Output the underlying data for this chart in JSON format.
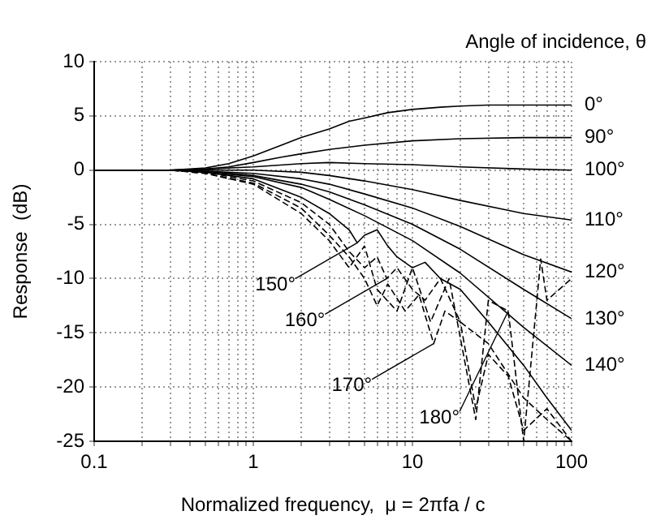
{
  "chart_data": {
    "type": "line",
    "xlabel": "Normalized frequency,  μ = 2πfa / c",
    "ylabel": "Response  (dB)",
    "legend_title": "Angle of incidence, θ",
    "log": "x",
    "grid": true,
    "marker": "none",
    "xlim": [
      0.1,
      100
    ],
    "ylim": [
      -25,
      10
    ],
    "xticks": [
      0.1,
      {
        "value": 0.2,
        "label": null
      },
      {
        "value": 0.3,
        "label": null
      },
      {
        "value": 0.4,
        "label": null
      },
      {
        "value": 0.5,
        "label": null
      },
      {
        "value": 0.6,
        "label": null
      },
      {
        "value": 0.7,
        "label": null
      },
      {
        "value": 0.8,
        "label": null
      },
      {
        "value": 0.9,
        "label": null
      },
      1,
      {
        "value": 2,
        "label": null
      },
      {
        "value": 3,
        "label": null
      },
      {
        "value": 4,
        "label": null
      },
      {
        "value": 5,
        "label": null
      },
      {
        "value": 6,
        "label": null
      },
      {
        "value": 7,
        "label": null
      },
      {
        "value": 8,
        "label": null
      },
      {
        "value": 9,
        "label": null
      },
      10,
      {
        "value": 20,
        "label": null
      },
      {
        "value": 30,
        "label": null
      },
      {
        "value": 40,
        "label": null
      },
      {
        "value": 50,
        "label": null
      },
      {
        "value": 60,
        "label": null
      },
      {
        "value": 70,
        "label": null
      },
      {
        "value": 80,
        "label": null
      },
      {
        "value": 90,
        "label": null
      },
      100
    ],
    "yticks": [
      10,
      5,
      0,
      -5,
      -10,
      -15,
      -20,
      -25
    ],
    "series": [
      {
        "name": "0°",
        "color": "#000000",
        "line_style": "solid",
        "x": [
          0.1,
          0.3,
          0.5,
          0.7,
          1,
          1.5,
          2,
          3,
          4,
          5,
          7,
          10,
          15,
          20,
          30,
          50,
          70,
          100
        ],
        "values": [
          0,
          0,
          0.2,
          0.6,
          1.3,
          2.3,
          3,
          3.8,
          4.5,
          4.8,
          5.3,
          5.6,
          5.8,
          5.9,
          6,
          6,
          6,
          6
        ]
      },
      {
        "name": "90°",
        "color": "#000000",
        "line_style": "solid",
        "x": [
          0.1,
          0.3,
          0.5,
          0.7,
          1,
          1.5,
          2,
          3,
          5,
          10,
          20,
          50,
          100
        ],
        "values": [
          0,
          0,
          0.1,
          0.3,
          0.7,
          1.2,
          1.5,
          1.9,
          2.3,
          2.7,
          2.9,
          3,
          3
        ]
      },
      {
        "name": "100°",
        "color": "#000000",
        "line_style": "solid",
        "x": [
          0.1,
          0.3,
          0.5,
          1,
          2,
          3,
          5,
          10,
          20,
          50,
          100
        ],
        "values": [
          0,
          0,
          0.1,
          0.3,
          0.6,
          0.7,
          0.6,
          0.5,
          0.3,
          0.1,
          0
        ]
      },
      {
        "name": "110°",
        "color": "#000000",
        "line_style": "solid",
        "x": [
          0.1,
          0.3,
          0.5,
          1,
          2,
          3,
          5,
          10,
          20,
          50,
          100
        ],
        "values": [
          0,
          0,
          0,
          0,
          -0.2,
          -0.5,
          -1,
          -1.8,
          -2.8,
          -4,
          -4.6
        ]
      },
      {
        "name": "120°",
        "color": "#000000",
        "line_style": "solid",
        "x": [
          0.1,
          0.3,
          0.5,
          1,
          2,
          3,
          5,
          10,
          20,
          50,
          100
        ],
        "values": [
          0,
          0,
          -0.1,
          -0.3,
          -0.8,
          -1.3,
          -2.2,
          -3.5,
          -5.2,
          -7.8,
          -9.4
        ]
      },
      {
        "name": "130°",
        "color": "#000000",
        "line_style": "solid",
        "x": [
          0.1,
          0.3,
          0.5,
          1,
          2,
          3,
          5,
          10,
          20,
          50,
          100
        ],
        "values": [
          0,
          0,
          -0.1,
          -0.5,
          -1.3,
          -2,
          -3.2,
          -5,
          -7.3,
          -11,
          -13.7
        ]
      },
      {
        "name": "140°",
        "color": "#000000",
        "line_style": "solid",
        "x": [
          0.1,
          0.3,
          0.5,
          1,
          2,
          3,
          5,
          10,
          20,
          50,
          100
        ],
        "values": [
          0,
          0,
          -0.2,
          -0.6,
          -1.6,
          -2.7,
          -4.2,
          -6.5,
          -9.5,
          -14.5,
          -18
        ]
      },
      {
        "color": "#000000",
        "line_style": "solid",
        "x": [
          0.1,
          0.3,
          0.5,
          1,
          2,
          3,
          4,
          4.5,
          5,
          6,
          7,
          8,
          10,
          12,
          15,
          20,
          30,
          50,
          70,
          100
        ],
        "values": [
          0,
          0,
          -0.2,
          -0.8,
          -2.5,
          -4,
          -5.5,
          -6.7,
          -6,
          -5.5,
          -7,
          -8,
          -9,
          -8.5,
          -10,
          -11,
          -14,
          -18,
          -21,
          -24
        ]
      },
      {
        "color": "#000000",
        "line_style": "dashed",
        "x": [
          0.1,
          0.3,
          0.5,
          1,
          2,
          3,
          4,
          5,
          6,
          6.9,
          8,
          10,
          12,
          15,
          20,
          30,
          50,
          70,
          100
        ],
        "values": [
          0,
          0,
          -0.2,
          -1,
          -3,
          -5,
          -7.5,
          -9,
          -8,
          -10,
          -9,
          -11,
          -12,
          -10,
          -14,
          -16,
          -21,
          -23,
          -25
        ]
      },
      {
        "color": "#000000",
        "line_style": "dashed",
        "x": [
          0.1,
          0.3,
          0.5,
          1,
          2,
          3,
          4,
          5,
          6,
          7,
          9,
          11,
          13.6,
          16,
          20,
          25,
          30,
          40,
          50,
          70,
          100
        ],
        "values": [
          0,
          0,
          -0.3,
          -1.2,
          -3.5,
          -6,
          -8,
          -10,
          -12.5,
          -10.5,
          -13,
          -11.5,
          -16,
          -13,
          -14,
          -22,
          -17,
          -19,
          -24,
          -22,
          -25
        ]
      },
      {
        "color": "#000000",
        "line_style": "dashed",
        "x": [
          0.1,
          0.3,
          0.5,
          1,
          2,
          3,
          4,
          5,
          6,
          8,
          10,
          13,
          17,
          25,
          30,
          40,
          50,
          64,
          70,
          100
        ],
        "values": [
          0,
          0,
          -0.3,
          -1.3,
          -4,
          -6.5,
          -9,
          -7,
          -11,
          -13,
          -9,
          -14,
          -10,
          -23,
          -12,
          -13,
          -25,
          -8.2,
          -12,
          -10
        ]
      }
    ],
    "annotations": [
      {
        "text": "150°",
        "x": 4.5,
        "y": -6.7
      },
      {
        "text": "160°",
        "x": 6.9,
        "y": -10
      },
      {
        "text": "170°",
        "x": 13.6,
        "y": -16
      },
      {
        "text": "180°",
        "x": 40,
        "y": -13
      }
    ]
  }
}
